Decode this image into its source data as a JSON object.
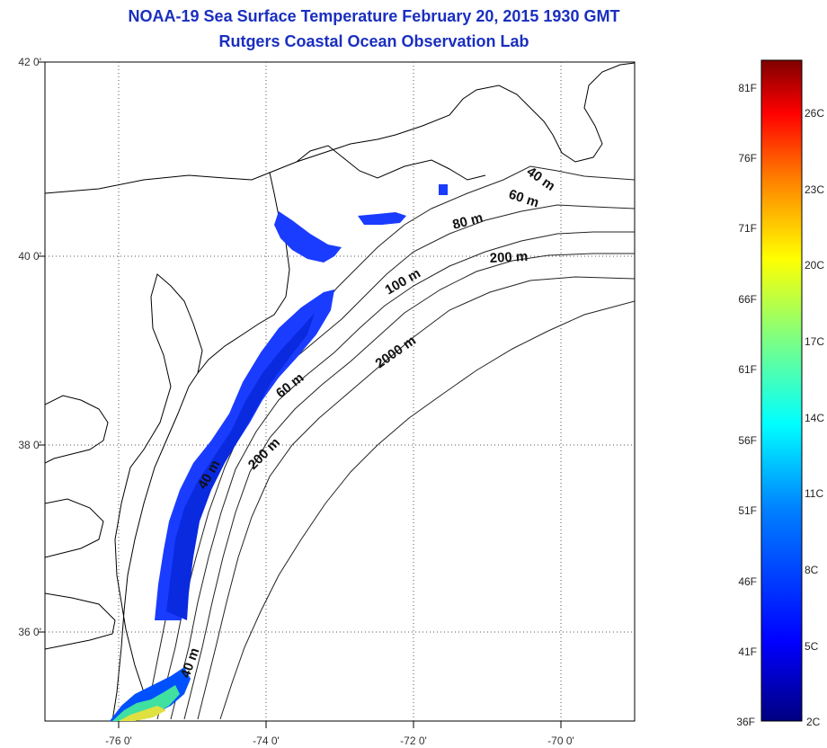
{
  "header": {
    "title": "NOAA-19 Sea Surface Temperature February 20, 2015 1930 GMT",
    "subtitle": "Rutgers Coastal Ocean Observation Lab"
  },
  "map": {
    "lon_range": [
      -77,
      -69
    ],
    "lat_range": [
      35,
      42
    ],
    "x_ticks": [
      {
        "value": -76,
        "label": "-76 0'"
      },
      {
        "value": -74,
        "label": "-74 0'"
      },
      {
        "value": -72,
        "label": "-72 0'"
      },
      {
        "value": -70,
        "label": "-70 0'"
      }
    ],
    "y_ticks": [
      {
        "value": 42,
        "label": "42 0'"
      },
      {
        "value": 40,
        "label": "40 0'"
      },
      {
        "value": 38,
        "label": "38 0'"
      },
      {
        "value": 36,
        "label": "36 0'"
      }
    ],
    "contour_labels": [
      "40 m",
      "60 m",
      "80 m",
      "200 m",
      "100 m",
      "2000 m",
      "60 m",
      "200 m",
      "40 m",
      "40 m"
    ]
  },
  "colorbar": {
    "fahrenheit_labels": [
      "81F",
      "76F",
      "71F",
      "66F",
      "61F",
      "56F",
      "51F",
      "46F",
      "41F",
      "36F"
    ],
    "celsius_labels": [
      "26C",
      "23C",
      "20C",
      "17C",
      "14C",
      "11C",
      "8C",
      "5C",
      "2C"
    ],
    "colors": [
      "#000080",
      "#0000ff",
      "#0080ff",
      "#00ffff",
      "#80ff80",
      "#ffff00",
      "#ff8000",
      "#ff0000",
      "#800000"
    ]
  }
}
